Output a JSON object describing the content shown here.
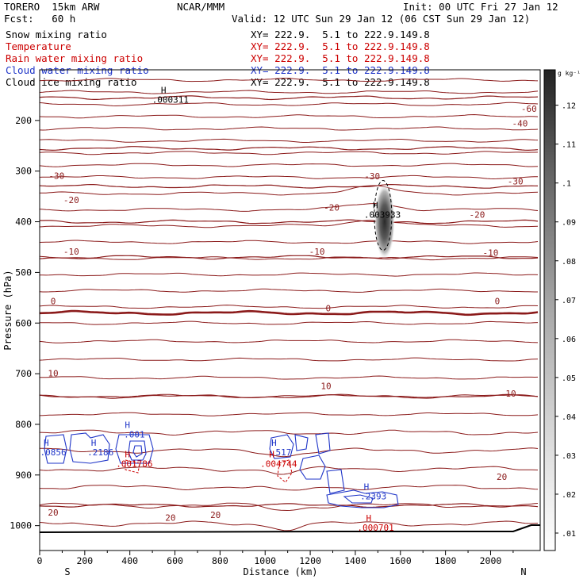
{
  "header": {
    "model": "TORERO  15km ARW",
    "org": "NCAR/MMM",
    "init": "Init: 00 UTC Fri 27 Jan 12",
    "fcst": "Fcst:   60 h",
    "valid": "Valid: 12 UTC Sun 29 Jan 12 (06 CST Sun 29 Jan 12)"
  },
  "fields": [
    {
      "label": "Snow mixing ratio",
      "xy": "XY= 222.9.  5.1 to 222.9.149.8",
      "color": "#000000"
    },
    {
      "label": "Temperature",
      "xy": "XY= 222.9.  5.1 to 222.9.149.8",
      "color": "#cc0000"
    },
    {
      "label": "Rain water mixing ratio",
      "xy": "XY= 222.9.  5.1 to 222.9.149.8",
      "color": "#cc0000"
    },
    {
      "label": "Cloud water mixing ratio",
      "xy": "XY= 222.9.  5.1 to 222.9.149.8",
      "color": "#1f35c8"
    },
    {
      "label": "Cloud ice mixing ratio",
      "xy": "XY= 222.9.  5.1 to 222.9.149.8",
      "color": "#000000"
    }
  ],
  "chart_data": {
    "type": "cross-section contour",
    "xlabel": "Distance (km)",
    "ylabel": "Pressure (hPa)",
    "xlim": [
      0,
      2220
    ],
    "ylim": [
      1050,
      100
    ],
    "x_ticks": [
      0,
      200,
      400,
      600,
      800,
      1000,
      1200,
      1400,
      1600,
      1800,
      2000
    ],
    "y_ticks": [
      200,
      300,
      400,
      500,
      600,
      700,
      800,
      900,
      1000
    ],
    "end_labels": {
      "left": "S",
      "right": "N"
    },
    "colorbar": {
      "unit": "g kg⁻¹",
      "ticks": [
        ".01",
        ".02",
        ".03",
        ".04",
        ".05",
        ".06",
        ".07",
        ".08",
        ".09",
        ".1",
        ".11",
        ".12"
      ]
    },
    "temperature_isotherms": [
      {
        "label": "-60",
        "p": 155,
        "emphasis": false
      },
      {
        "label": "-40",
        "p": 255,
        "emphasis": false
      },
      {
        "label": "-30",
        "p": 330,
        "emphasis": false
      },
      {
        "label": "-20",
        "p": 400,
        "emphasis": false
      },
      {
        "label": "-10",
        "p": 470,
        "emphasis": false
      },
      {
        "label": "0",
        "p": 580,
        "emphasis": true
      },
      {
        "label": "10",
        "p": 745,
        "emphasis": false
      },
      {
        "label": "20",
        "p": 960,
        "emphasis": false
      }
    ],
    "temperature_labels": [
      {
        "text": "-60",
        "x": 2170,
        "p": 183
      },
      {
        "text": "-40",
        "x": 2130,
        "p": 212
      },
      {
        "text": "-30",
        "x": 75,
        "p": 315
      },
      {
        "text": "-30",
        "x": 1475,
        "p": 316
      },
      {
        "text": "-30",
        "x": 2110,
        "p": 326
      },
      {
        "text": "-20",
        "x": 140,
        "p": 363
      },
      {
        "text": "-20",
        "x": 1295,
        "p": 378
      },
      {
        "text": "-20",
        "x": 1940,
        "p": 392
      },
      {
        "text": "-10",
        "x": 140,
        "p": 465
      },
      {
        "text": "-10",
        "x": 1230,
        "p": 465
      },
      {
        "text": "-10",
        "x": 2000,
        "p": 467
      },
      {
        "text": "0",
        "x": 60,
        "p": 563
      },
      {
        "text": "0",
        "x": 1280,
        "p": 577
      },
      {
        "text": "0",
        "x": 2030,
        "p": 563
      },
      {
        "text": "10",
        "x": 60,
        "p": 705
      },
      {
        "text": "10",
        "x": 1270,
        "p": 730
      },
      {
        "text": "10",
        "x": 2090,
        "p": 745
      },
      {
        "text": "20",
        "x": 2050,
        "p": 910
      },
      {
        "text": "20",
        "x": 60,
        "p": 980
      },
      {
        "text": "20",
        "x": 580,
        "p": 990
      },
      {
        "text": "20",
        "x": 780,
        "p": 985
      }
    ],
    "maxima": [
      {
        "text": ".000311",
        "x": 580,
        "p": 165,
        "color": "#000000"
      },
      {
        "text": ".003933",
        "x": 1520,
        "p": 392,
        "color": "#000000"
      },
      {
        "text": ".001",
        "x": 420,
        "p": 826,
        "color": "#1f35c8"
      },
      {
        "text": ".0856",
        "x": 60,
        "p": 861,
        "color": "#1f35c8"
      },
      {
        "text": ".2186",
        "x": 270,
        "p": 861,
        "color": "#1f35c8"
      },
      {
        "text": ".001786",
        "x": 420,
        "p": 884,
        "color": "#cc0000"
      },
      {
        "text": ".517",
        "x": 1070,
        "p": 861,
        "color": "#1f35c8"
      },
      {
        "text": ".004744",
        "x": 1060,
        "p": 884,
        "color": "#cc0000"
      },
      {
        "text": ".2393",
        "x": 1480,
        "p": 948,
        "color": "#1f35c8"
      },
      {
        "text": ".000701",
        "x": 1490,
        "p": 1010,
        "color": "#cc0000"
      }
    ],
    "cloud_ice_max": {
      "x": 1530,
      "p": 400,
      "value": 0.13
    }
  }
}
